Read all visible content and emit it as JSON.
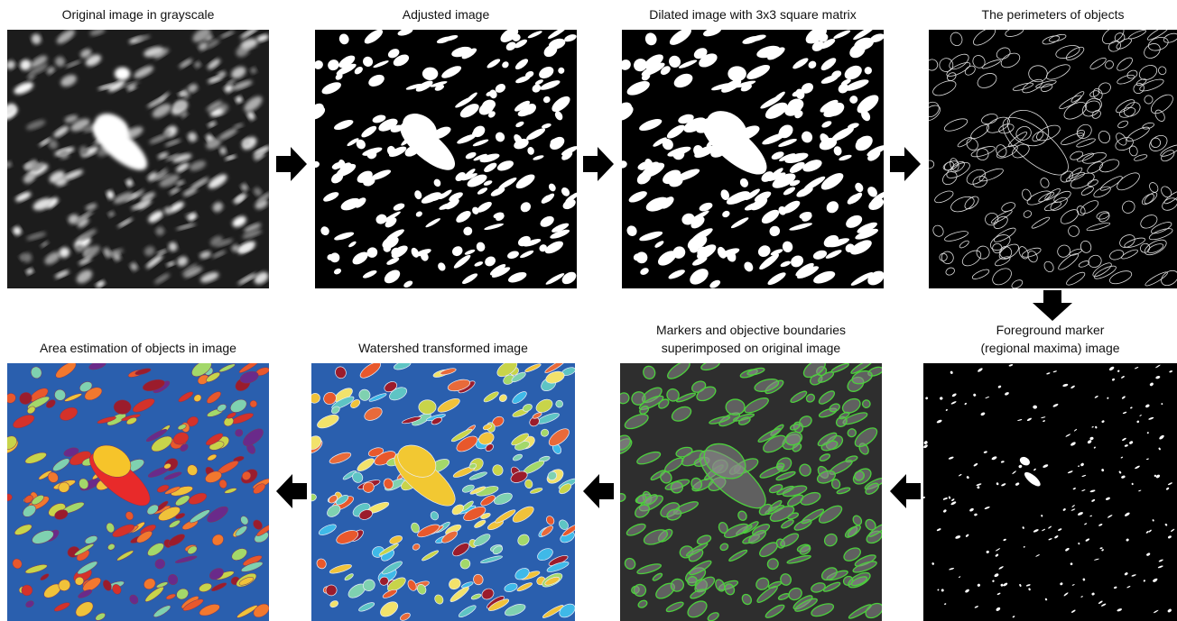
{
  "top_row": [
    {
      "title": [
        "Original image in grayscale"
      ]
    },
    {
      "title": [
        "Adjusted image"
      ]
    },
    {
      "title": [
        "Dilated image with 3x3 square matrix"
      ]
    },
    {
      "title": [
        "The perimeters of objects"
      ]
    }
  ],
  "bottom_row": [
    {
      "title": [
        "Area estimation of objects in image"
      ]
    },
    {
      "title": [
        "Watershed transformed image"
      ]
    },
    {
      "title": [
        "Markers and objective boundaries",
        "superimposed on original image"
      ]
    },
    {
      "title": [
        "Foreground marker",
        "(regional maxima) image"
      ]
    }
  ]
}
